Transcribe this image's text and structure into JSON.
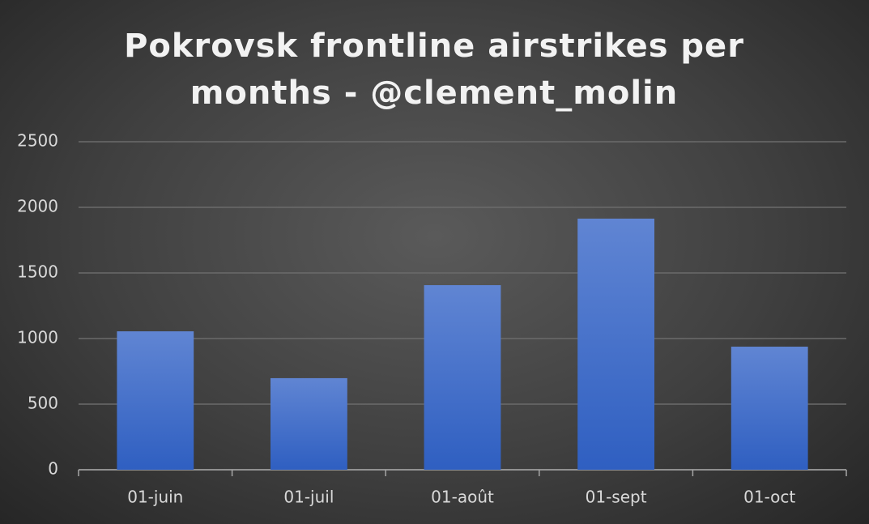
{
  "chart_data": {
    "type": "bar",
    "title": "Pokrovsk frontline airstrikes per months - @clement_molin",
    "categories": [
      "01-juin",
      "01-juil",
      "01-août",
      "01-sept",
      "01-oct"
    ],
    "values": [
      1055,
      698,
      1407,
      1914,
      938
    ],
    "color": "#4472c4",
    "ylim": [
      0,
      2500
    ],
    "yticks": [
      0,
      500,
      1000,
      1500,
      2000,
      2500
    ],
    "grid": true
  }
}
